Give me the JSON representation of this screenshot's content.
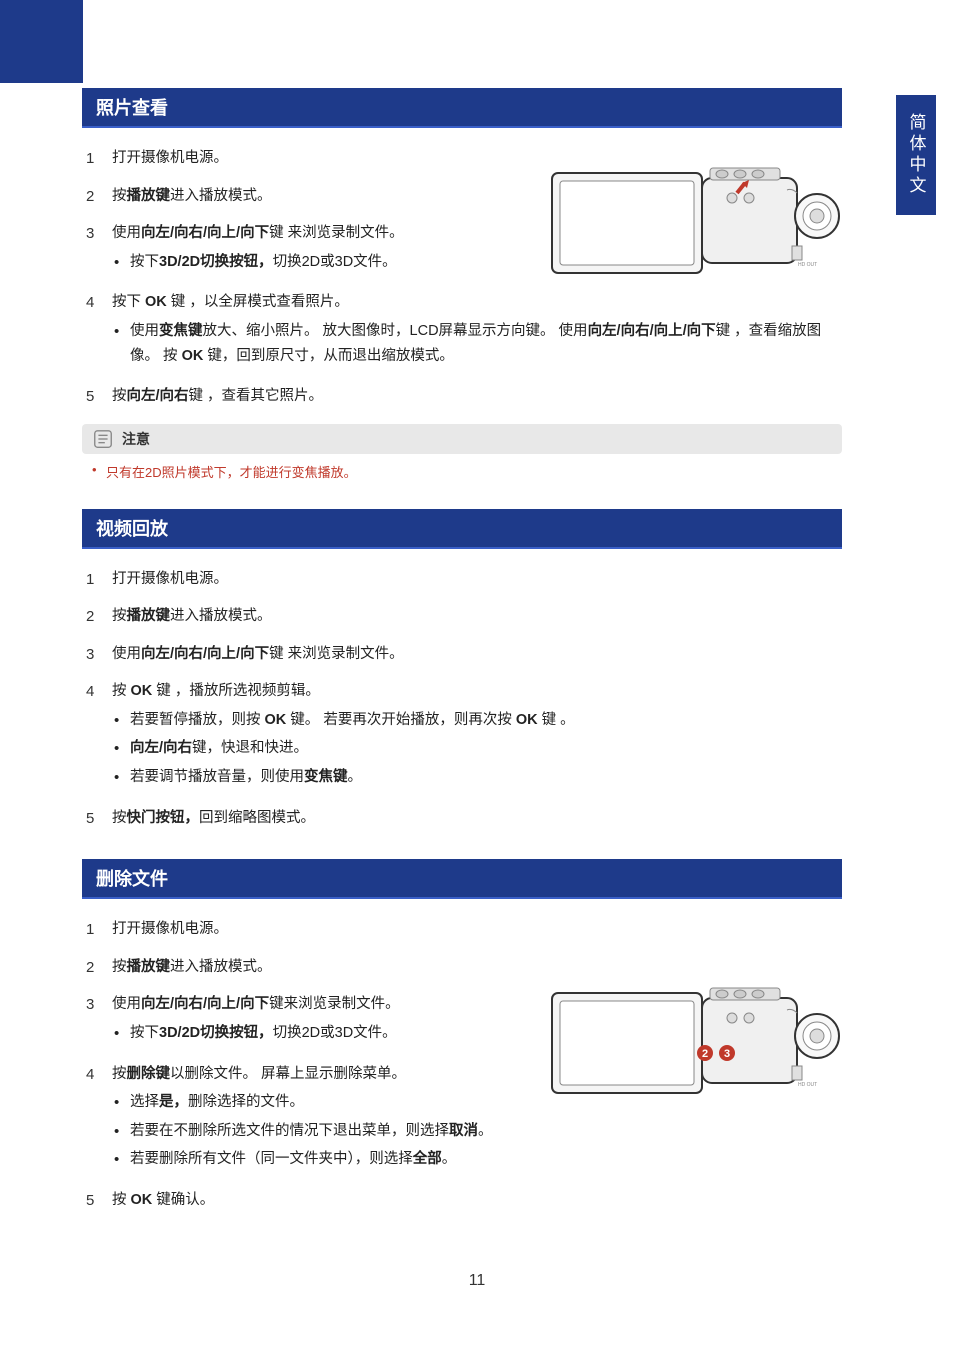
{
  "colors": {
    "primary": "#1e3a8a",
    "header_underline": "#3a5fc8",
    "note_bg": "#e8e8e8",
    "note_text": "#c0392b",
    "body_text": "#222222",
    "white": "#ffffff"
  },
  "side_tab": "简体中文",
  "page_number": "11",
  "sections": [
    {
      "title": "照片查看",
      "has_camera": true,
      "camera_pos": "pos1",
      "camera_markers": [],
      "steps": [
        {
          "num": "1",
          "text": "打开摄像机电源。",
          "bullets": []
        },
        {
          "num": "2",
          "html": "按<b>播放键</b>进入播放模式。",
          "bullets": []
        },
        {
          "num": "3",
          "html": "使用<b>向左/向右/向上/向下</b>键 来浏览录制文件。",
          "bullets": [
            "按下<b>3D/2D切换按钮，</b>切换2D或3D文件。"
          ]
        },
        {
          "num": "4",
          "html": "按下 <b>OK</b> 键 ，以全屏模式查看照片。",
          "bullets": [
            "使用<b>变焦键</b>放大、缩小照片。 放大图像时，LCD屏幕显示方向键。 使用<b>向左/向右/向上/向下</b>键 ，查看缩放图像。 按 <b>OK</b> 键，回到原尺寸，从而退出缩放模式。"
          ]
        },
        {
          "num": "5",
          "html": "按<b>向左/向右</b>键 ，查看其它照片。",
          "bullets": []
        }
      ],
      "note": {
        "label": "注意",
        "items": [
          "只有在2D照片模式下，才能进行变焦播放。"
        ]
      }
    },
    {
      "title": "视频回放",
      "has_camera": false,
      "steps": [
        {
          "num": "1",
          "text": "打开摄像机电源。",
          "bullets": []
        },
        {
          "num": "2",
          "html": "按<b>播放键</b>进入播放模式。",
          "bullets": []
        },
        {
          "num": "3",
          "html": "使用<b>向左/向右/向上/向下</b>键 来浏览录制文件。",
          "bullets": []
        },
        {
          "num": "4",
          "html": "按 <b>OK</b> 键 ，播放所选视频剪辑。",
          "bullets": [
            "若要暂停播放，则按 <b>OK</b> 键。 若要再次开始播放，则再次按 <b>OK</b> 键 。",
            "<b>向左/向右</b>键，快退和快进。",
            "若要调节播放音量，则使用<b>变焦键</b>。"
          ]
        },
        {
          "num": "5",
          "html": "按<b>快门按钮，</b>回到缩略图模式。",
          "bullets": []
        }
      ]
    },
    {
      "title": "删除文件",
      "has_camera": true,
      "camera_pos": "pos2",
      "camera_markers": [
        "3",
        "2"
      ],
      "steps": [
        {
          "num": "1",
          "text": "打开摄像机电源。",
          "bullets": []
        },
        {
          "num": "2",
          "html": "按<b>播放键</b>进入播放模式。",
          "bullets": []
        },
        {
          "num": "3",
          "html": "使用<b>向左/向右/向上/向下</b>键来浏览录制文件。",
          "bullets": [
            "按下<b>3D/2D切换按钮，</b>切换2D或3D文件。"
          ]
        },
        {
          "num": "4",
          "html": "按<b>删除键</b>以删除文件。 屏幕上显示删除菜单。",
          "bullets": [
            "选择<b>是，</b>删除选择的文件。",
            "若要在不删除所选文件的情况下退出菜单，则选择<b>取消</b>。",
            "若要删除所有文件（同一文件夹中），则选择<b>全部</b>。"
          ]
        },
        {
          "num": "5",
          "html": "按 <b>OK</b> 键确认。",
          "bullets": []
        }
      ]
    }
  ]
}
